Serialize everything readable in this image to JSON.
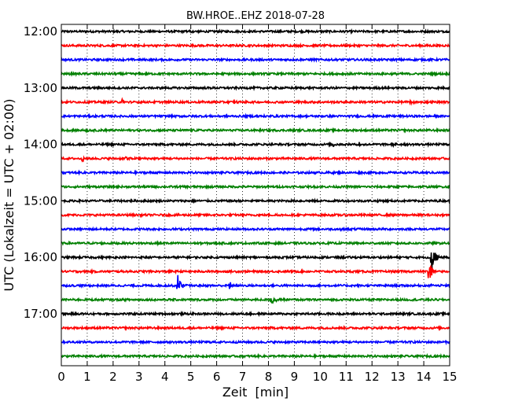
{
  "chart_data": {
    "type": "line",
    "title": "BW.HROE..EHZ 2018-07-28",
    "xlabel": "Zeit  [min]",
    "ylabel": "UTC (Lokalzeit = UTC + 02:00)",
    "xlim": [
      0,
      15
    ],
    "x_ticks": [
      "0",
      "1",
      "2",
      "3",
      "4",
      "5",
      "6",
      "7",
      "8",
      "9",
      "10",
      "11",
      "12",
      "13",
      "14",
      "15"
    ],
    "y_tick_labels": [
      "12:00",
      "13:00",
      "14:00",
      "15:00",
      "16:00",
      "17:00"
    ],
    "grid": "vertical dotted lines at each minute",
    "trace_colors": [
      "#000000",
      "#ff0000",
      "#0000ff",
      "#008000"
    ],
    "series": [
      {
        "start": "12:00",
        "color": "black",
        "events": [
          {
            "t": 4.9,
            "amp": 0.12
          }
        ]
      },
      {
        "start": "12:15",
        "color": "red",
        "events": []
      },
      {
        "start": "12:30",
        "color": "blue",
        "events": []
      },
      {
        "start": "12:45",
        "color": "green",
        "events": []
      },
      {
        "start": "13:00",
        "color": "black",
        "events": []
      },
      {
        "start": "13:15",
        "color": "red",
        "events": [
          {
            "t": 2.35,
            "amp": 0.2
          },
          {
            "t": 6.65,
            "amp": 0.15
          },
          {
            "t": 13.5,
            "amp": 0.2
          }
        ]
      },
      {
        "start": "13:30",
        "color": "blue",
        "events": [
          {
            "t": 7.5,
            "amp": 0.12
          }
        ]
      },
      {
        "start": "13:45",
        "color": "green",
        "events": [
          {
            "t": 1.0,
            "amp": 0.1
          }
        ]
      },
      {
        "start": "14:00",
        "color": "black",
        "events": [
          {
            "t": 10.5,
            "amp": 0.2
          },
          {
            "t": 11.5,
            "amp": 0.22
          },
          {
            "t": 12.8,
            "amp": 0.22
          }
        ]
      },
      {
        "start": "14:15",
        "color": "red",
        "events": [
          {
            "t": 0.8,
            "amp": 0.2
          },
          {
            "t": 2.5,
            "amp": 0.22
          }
        ]
      },
      {
        "start": "14:30",
        "color": "blue",
        "events": []
      },
      {
        "start": "14:45",
        "color": "green",
        "events": []
      },
      {
        "start": "15:00",
        "color": "black",
        "events": []
      },
      {
        "start": "15:15",
        "color": "red",
        "events": [
          {
            "t": 8.3,
            "amp": 0.12
          }
        ]
      },
      {
        "start": "15:30",
        "color": "blue",
        "events": [
          {
            "t": 10.8,
            "amp": 0.12
          }
        ]
      },
      {
        "start": "15:45",
        "color": "green",
        "events": []
      },
      {
        "start": "16:00",
        "color": "black",
        "events": [
          {
            "t": 14.3,
            "amp": 2.4
          }
        ]
      },
      {
        "start": "16:15",
        "color": "red",
        "events": [
          {
            "t": 14.2,
            "amp": 1.5
          }
        ]
      },
      {
        "start": "16:30",
        "color": "blue",
        "events": [
          {
            "t": 4.5,
            "amp": 1.1
          },
          {
            "t": 6.5,
            "amp": 0.35
          },
          {
            "t": 14.2,
            "amp": 0.4
          }
        ]
      },
      {
        "start": "16:45",
        "color": "green",
        "events": [
          {
            "t": 8.1,
            "amp": 0.65
          }
        ]
      },
      {
        "start": "17:00",
        "color": "black",
        "events": []
      },
      {
        "start": "17:15",
        "color": "red",
        "events": []
      },
      {
        "start": "17:30",
        "color": "blue",
        "events": []
      },
      {
        "start": "17:45",
        "color": "green",
        "events": []
      }
    ]
  }
}
